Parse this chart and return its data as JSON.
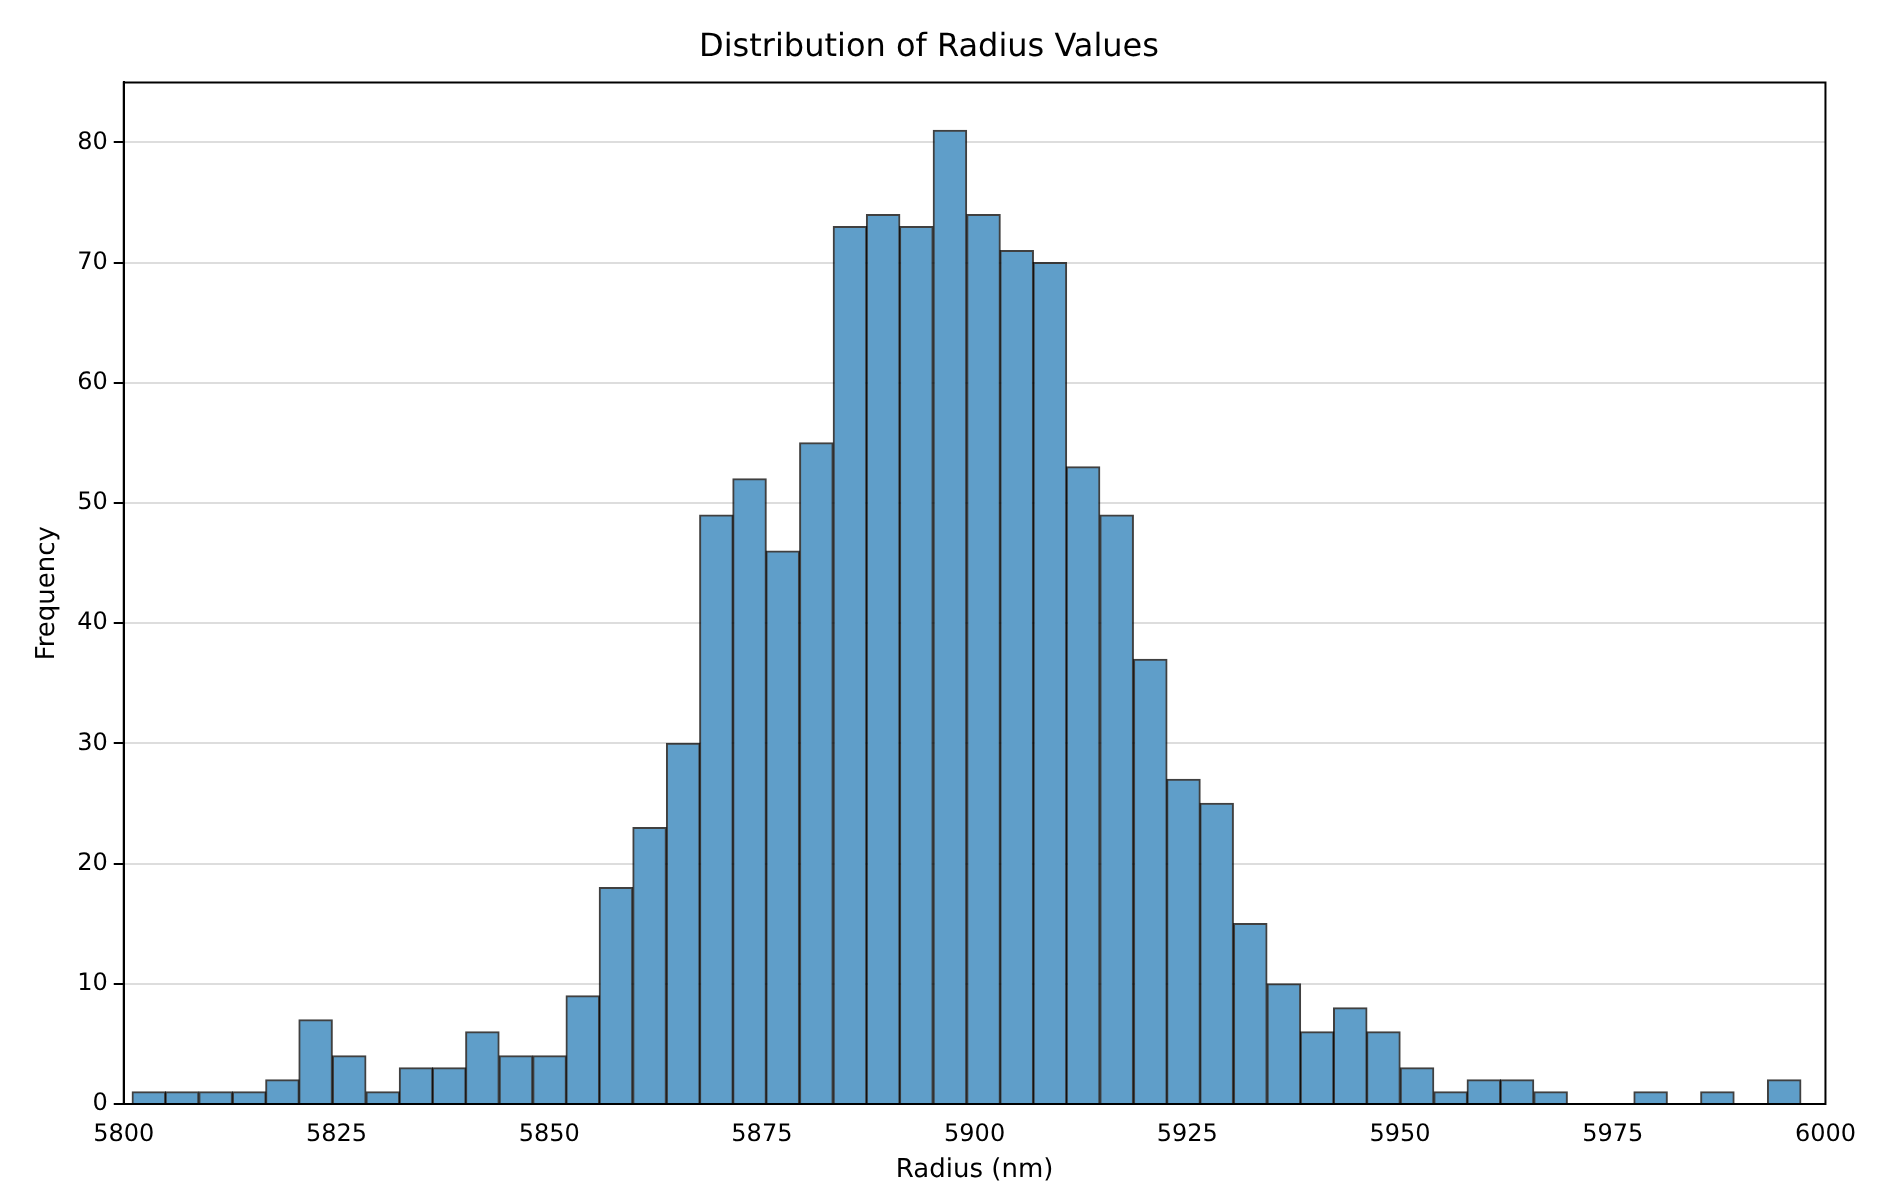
{
  "chart_data": {
    "type": "histogram",
    "title": "Distribution of Radius Values",
    "xlabel": "Radius (nm)",
    "ylabel": "Frequency",
    "bins": [
      5801.0,
      5804.9,
      5808.8,
      5812.8,
      5816.7,
      5820.6,
      5824.5,
      5828.5,
      5832.4,
      5836.3,
      5840.2,
      5844.1,
      5848.1,
      5852.0,
      5855.9,
      5859.8,
      5863.8,
      5867.7,
      5871.6,
      5875.5,
      5879.4,
      5883.4,
      5887.3,
      5891.2,
      5895.1,
      5899.1,
      5903.0,
      5906.9,
      5910.8,
      5914.7,
      5918.7,
      5922.6,
      5926.5,
      5930.4,
      5934.4,
      5938.3,
      5942.2,
      5946.1,
      5950.0,
      5954.0,
      5957.9,
      5961.8,
      5965.7,
      5969.7,
      5973.6,
      5977.5,
      5981.4,
      5985.3,
      5989.3,
      5993.2,
      5997.1
    ],
    "values": [
      1,
      1,
      1,
      1,
      2,
      7,
      4,
      1,
      3,
      3,
      6,
      4,
      4,
      9,
      18,
      23,
      30,
      49,
      52,
      46,
      55,
      73,
      74,
      73,
      81,
      74,
      71,
      70,
      53,
      49,
      37,
      27,
      25,
      15,
      10,
      6,
      8,
      6,
      3,
      1,
      2,
      2,
      1,
      0,
      0,
      1,
      0,
      1,
      0,
      2
    ],
    "color": "#5f9ec9",
    "xlim": [
      5800,
      6000
    ],
    "xticks": [
      5800,
      5825,
      5850,
      5875,
      5900,
      5925,
      5950,
      5975,
      6000
    ],
    "ylim": [
      0,
      85
    ],
    "yticks": [
      0,
      10,
      20,
      30,
      40,
      50,
      60,
      70,
      80
    ],
    "grid": "y"
  }
}
